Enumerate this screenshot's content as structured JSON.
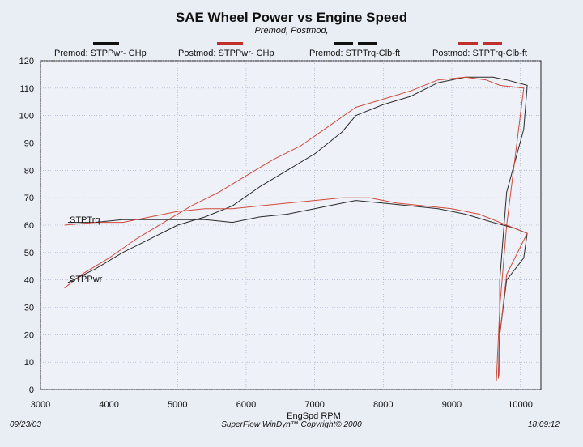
{
  "header": {
    "title": "SAE Wheel Power vs Engine Speed",
    "subtitle": "Premod, Postmod,"
  },
  "legend": [
    {
      "label": "Premod: STPPwr- CHp",
      "color": "#111111"
    },
    {
      "label": "Postmod: STPPwr- CHp",
      "color": "#c0302a"
    },
    {
      "label": "Premod: STPTrq-Clb-ft",
      "color": "#111111"
    },
    {
      "label": "Postmod: STPTrq-Clb-ft",
      "color": "#c0302a"
    }
  ],
  "footer": {
    "date": "09/23/03",
    "copyright": "SuperFlow WinDyn™  Copyright© 2000",
    "time": "18:09:12"
  },
  "chart_data": {
    "type": "line",
    "xlabel": "EngSpd  RPM",
    "ylabel": "",
    "xlim": [
      3000,
      10300
    ],
    "ylim": [
      0,
      120
    ],
    "xticks": [
      3000,
      4000,
      5000,
      6000,
      7000,
      8000,
      9000,
      10000
    ],
    "yticks": [
      0,
      10,
      20,
      30,
      40,
      50,
      60,
      70,
      80,
      90,
      100,
      110,
      120
    ],
    "grid": true,
    "legend_position": "top",
    "annotations": [
      "STPTrq",
      "STPPwr"
    ],
    "series": [
      {
        "name": "Premod: STPPwr- CHp",
        "color": "#2a2a2a",
        "points": [
          [
            3400,
            39
          ],
          [
            3800,
            44
          ],
          [
            4200,
            50
          ],
          [
            4600,
            55
          ],
          [
            5000,
            60
          ],
          [
            5400,
            63
          ],
          [
            5800,
            67
          ],
          [
            6200,
            74
          ],
          [
            6600,
            80
          ],
          [
            7000,
            86
          ],
          [
            7400,
            94
          ],
          [
            7600,
            100
          ],
          [
            8000,
            104
          ],
          [
            8400,
            107
          ],
          [
            8800,
            112
          ],
          [
            9200,
            114
          ],
          [
            9600,
            114
          ],
          [
            9800,
            113
          ],
          [
            10100,
            111
          ],
          [
            10050,
            95
          ],
          [
            9800,
            72
          ],
          [
            9700,
            40
          ],
          [
            9700,
            25
          ],
          [
            9680,
            5
          ]
        ]
      },
      {
        "name": "Postmod: STPPwr- CHp",
        "color": "#d04a3c",
        "points": [
          [
            3350,
            37
          ],
          [
            3600,
            42
          ],
          [
            4000,
            48
          ],
          [
            4400,
            55
          ],
          [
            4800,
            61
          ],
          [
            5200,
            67
          ],
          [
            5600,
            72
          ],
          [
            6000,
            78
          ],
          [
            6400,
            84
          ],
          [
            6800,
            89
          ],
          [
            7200,
            96
          ],
          [
            7600,
            103
          ],
          [
            8000,
            106
          ],
          [
            8400,
            109
          ],
          [
            8800,
            113
          ],
          [
            9200,
            114
          ],
          [
            9500,
            113
          ],
          [
            9700,
            111
          ],
          [
            10050,
            110
          ],
          [
            9800,
            60
          ],
          [
            9700,
            30
          ],
          [
            9650,
            3
          ]
        ]
      },
      {
        "name": "Premod: STPTrq-Clb-ft",
        "color": "#2a2a2a",
        "points": [
          [
            3400,
            61
          ],
          [
            3800,
            61
          ],
          [
            4200,
            62
          ],
          [
            4600,
            62
          ],
          [
            5000,
            62
          ],
          [
            5400,
            62
          ],
          [
            5800,
            61
          ],
          [
            6200,
            63
          ],
          [
            6600,
            64
          ],
          [
            7000,
            66
          ],
          [
            7400,
            68
          ],
          [
            7600,
            69
          ],
          [
            8000,
            68
          ],
          [
            8400,
            67
          ],
          [
            8800,
            66
          ],
          [
            9200,
            64
          ],
          [
            9600,
            61
          ],
          [
            9900,
            59
          ],
          [
            10100,
            57
          ],
          [
            10050,
            48
          ],
          [
            9800,
            40
          ],
          [
            9700,
            20
          ],
          [
            9700,
            5
          ]
        ]
      },
      {
        "name": "Postmod: STPTrq-Clb-ft",
        "color": "#d04a3c",
        "points": [
          [
            3350,
            60
          ],
          [
            3800,
            61
          ],
          [
            4200,
            61
          ],
          [
            4600,
            63
          ],
          [
            5000,
            65
          ],
          [
            5400,
            66
          ],
          [
            5800,
            66
          ],
          [
            6200,
            67
          ],
          [
            6600,
            68
          ],
          [
            7000,
            69
          ],
          [
            7400,
            70
          ],
          [
            7800,
            70
          ],
          [
            8200,
            68
          ],
          [
            8600,
            67
          ],
          [
            9000,
            66
          ],
          [
            9400,
            64
          ],
          [
            9800,
            60
          ],
          [
            10100,
            57
          ],
          [
            9800,
            42
          ],
          [
            9700,
            20
          ],
          [
            9680,
            4
          ]
        ]
      }
    ]
  }
}
